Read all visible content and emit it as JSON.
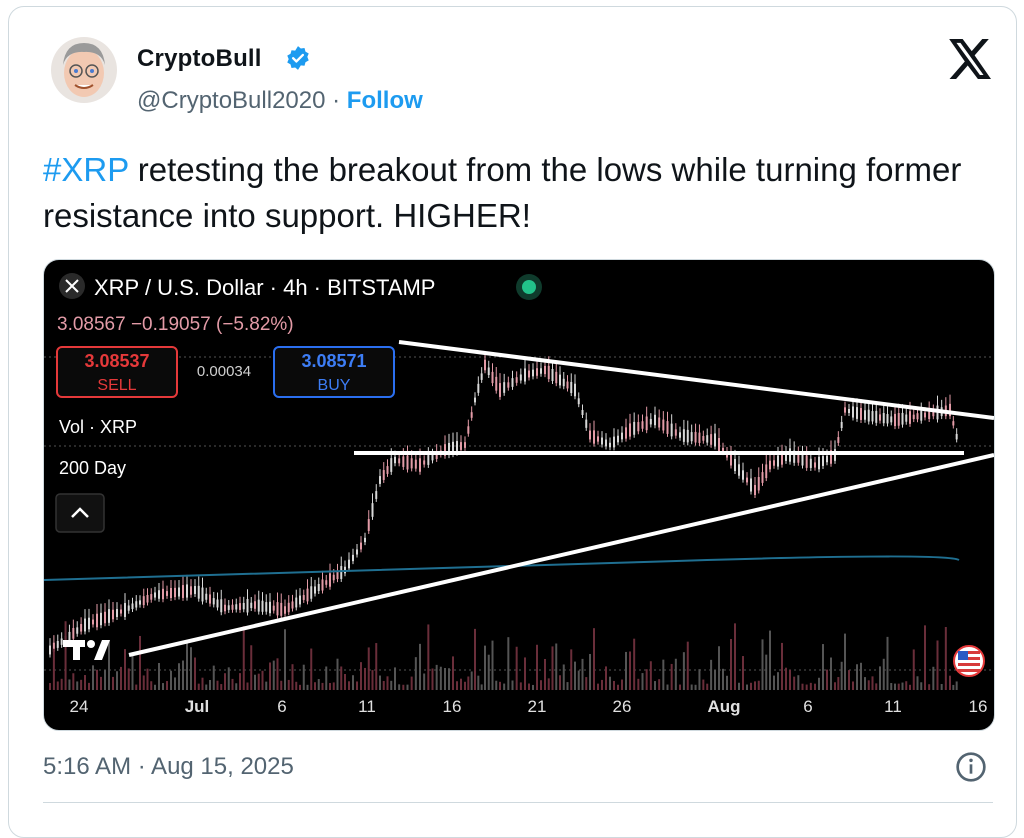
{
  "author": {
    "name": "CryptoBull",
    "handle": "@CryptoBull2020",
    "separator": " · ",
    "follow_label": "Follow"
  },
  "tweet": {
    "hashtag": "#XRP",
    "text": " retesting the breakout from the lows while turning former resistance into support. HIGHER!"
  },
  "chart": {
    "header": "XRP / U.S. Dollar · 4h · BITSTAMP",
    "ohlc_line": "3.08567 −0.19057 (−5.82%)",
    "sell_price": "3.08537",
    "sell_label": "SELL",
    "spread": "0.00034",
    "buy_price": "3.08571",
    "buy_label": "BUY",
    "indicator_vol": "Vol · XRP",
    "indicator_ma": "200 Day",
    "x_ticks": [
      "24",
      "Jul",
      "6",
      "11",
      "16",
      "21",
      "26",
      "Aug",
      "6",
      "11",
      "16"
    ]
  },
  "meta": {
    "timestamp": "5:16 AM · Aug 15, 2025"
  },
  "colors": {
    "link": "#1d9bf0",
    "up_candle": "#d8d8d8",
    "down_candle": "#e39ba7",
    "sell": "#e5393a",
    "buy": "#2b6ff0",
    "ma": "#1f6f91"
  },
  "icons": [
    "avatar",
    "verified-badge-icon",
    "x-logo-icon",
    "close-icon",
    "status-dot-icon",
    "chevron-up-icon",
    "tradingview-logo-icon",
    "us-flag-icon",
    "info-icon"
  ]
}
